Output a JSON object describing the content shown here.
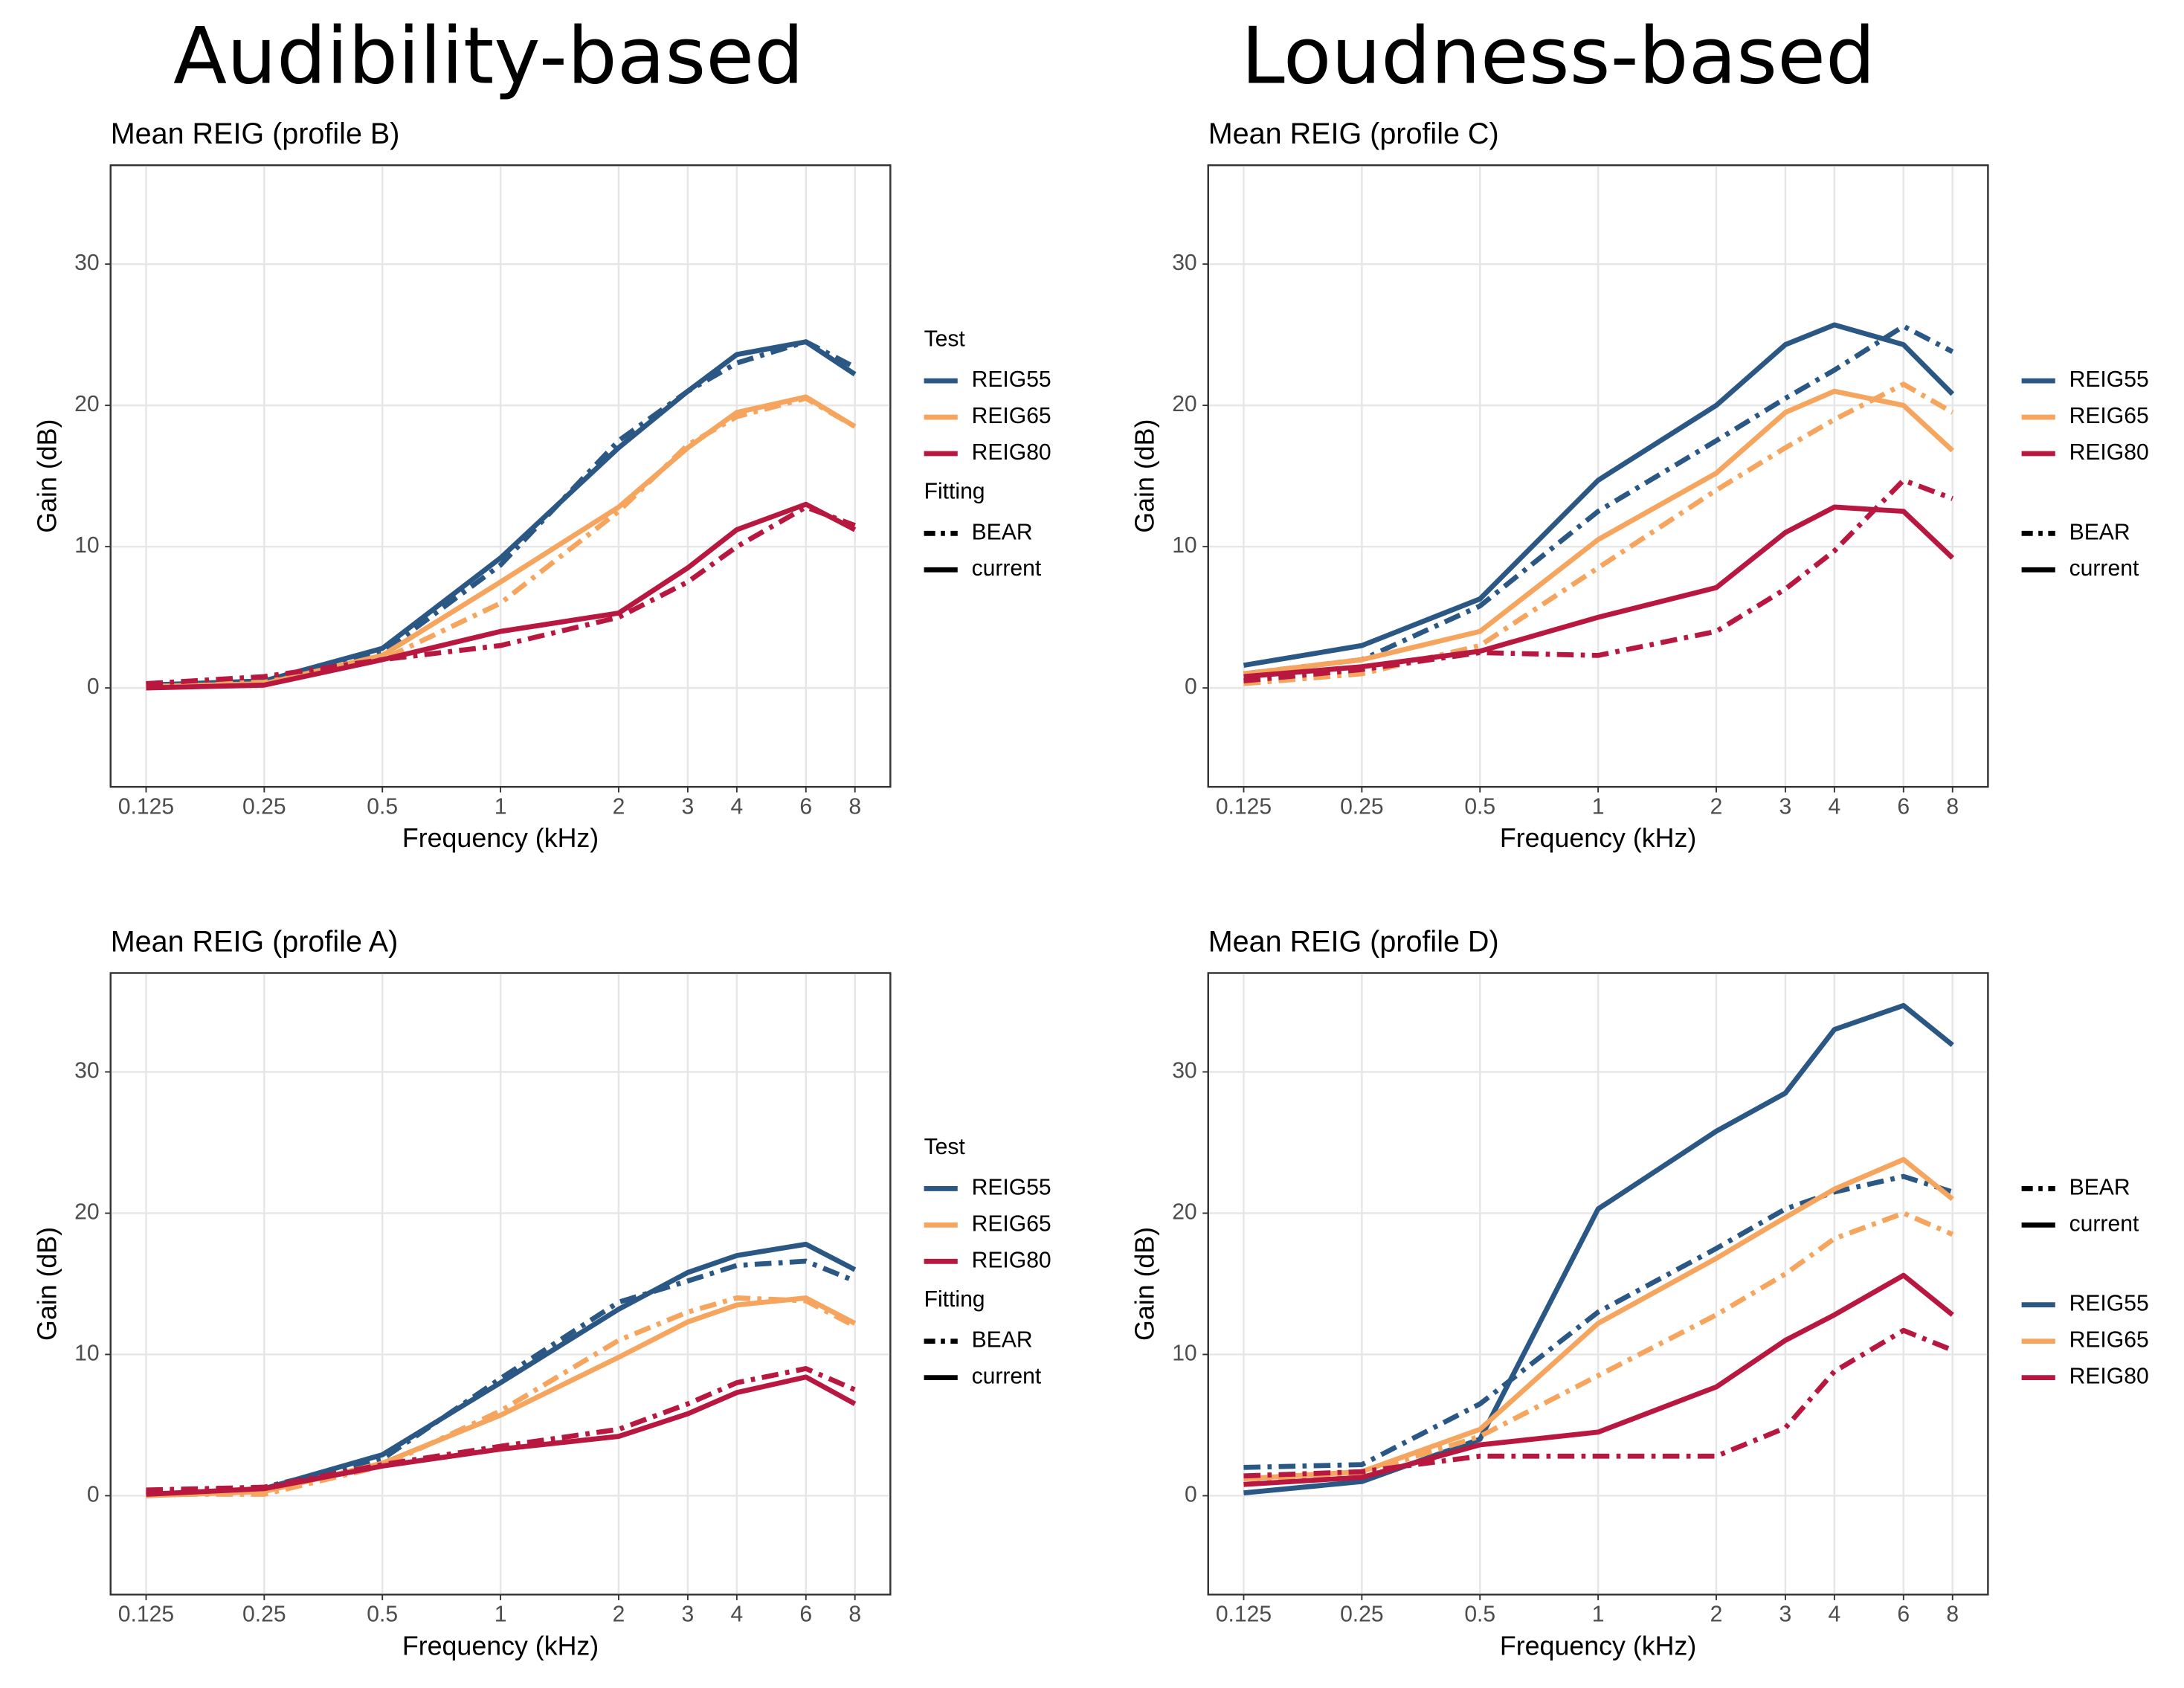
{
  "headers": [
    "Audibility-based",
    "Loudness-based"
  ],
  "chart_data": [
    {
      "type": "line",
      "title": "Mean REIG (profile B)",
      "xlabel": "Frequency (kHz)",
      "ylabel": "Gain (dB)",
      "x": [
        0.125,
        0.25,
        0.5,
        1,
        2,
        3,
        4,
        6,
        8
      ],
      "xscale": "log",
      "xlim": [
        0.1015,
        9.85
      ],
      "xticks": [
        0.125,
        0.25,
        0.5,
        1,
        2,
        3,
        4,
        6,
        8
      ],
      "ylim": [
        -7,
        37
      ],
      "yticks": [
        0,
        10,
        20,
        30
      ],
      "grid": true,
      "legend_position": "right",
      "legend_order": [
        "test",
        "fitting"
      ],
      "test_legend_title": "Test",
      "fitting_legend_title": "Fitting",
      "fittings": [
        {
          "name": "BEAR",
          "linestyle": "dashdot"
        },
        {
          "name": "current",
          "linestyle": "solid"
        }
      ],
      "series": [
        {
          "name": "REIG55",
          "color": "#2b5784",
          "values": [
            [
              0.3,
              0.6,
              2.5,
              8.7,
              17.5,
              21,
              23,
              24.5,
              22.7
            ],
            [
              0.2,
              0.5,
              2.8,
              9.2,
              17,
              21,
              23.6,
              24.5,
              22.2
            ]
          ]
        },
        {
          "name": "REIG65",
          "color": "#f5a55e",
          "values": [
            [
              0.2,
              0.4,
              2,
              6,
              12.5,
              17.2,
              19.2,
              20.5,
              18.5
            ],
            [
              0.1,
              0.3,
              2.3,
              7.5,
              12.8,
              17,
              19.5,
              20.6,
              18.5
            ]
          ]
        },
        {
          "name": "REIG80",
          "color": "#b8173f",
          "values": [
            [
              0.3,
              0.8,
              2,
              3,
              5,
              7.5,
              10,
              12.8,
              11.5
            ],
            [
              0,
              0.2,
              2,
              4,
              5.3,
              8.5,
              11.2,
              13,
              11.2
            ]
          ]
        }
      ]
    },
    {
      "type": "line",
      "title": "Mean REIG (profile C)",
      "xlabel": "Frequency (kHz)",
      "ylabel": "Gain (dB)",
      "x": [
        0.125,
        0.25,
        0.5,
        1,
        2,
        3,
        4,
        6,
        8
      ],
      "xscale": "log",
      "xlim": [
        0.1015,
        9.85
      ],
      "xticks": [
        0.125,
        0.25,
        0.5,
        1,
        2,
        3,
        4,
        6,
        8
      ],
      "ylim": [
        -7,
        37
      ],
      "yticks": [
        0,
        10,
        20,
        30
      ],
      "grid": true,
      "legend_position": "right",
      "legend_order": [
        "test",
        "fitting"
      ],
      "fittings": [
        {
          "name": "BEAR",
          "linestyle": "dashdot"
        },
        {
          "name": "current",
          "linestyle": "solid"
        }
      ],
      "series": [
        {
          "name": "REIG55",
          "color": "#2b5784",
          "values": [
            [
              1,
              2,
              5.8,
              12.5,
              17.5,
              20.5,
              22.5,
              25.6,
              23.8
            ],
            [
              1.6,
              3,
              6.3,
              14.7,
              20,
              24.3,
              25.7,
              24.3,
              20.8
            ]
          ]
        },
        {
          "name": "REIG65",
          "color": "#f5a55e",
          "values": [
            [
              0.3,
              1,
              3,
              8.5,
              14,
              17,
              19,
              21.5,
              19.5
            ],
            [
              1,
              2,
              4,
              10.5,
              15.2,
              19.5,
              21,
              20,
              16.8
            ]
          ]
        },
        {
          "name": "REIG80",
          "color": "#b8173f",
          "values": [
            [
              0.5,
              1.3,
              2.5,
              2.3,
              4,
              7,
              9.7,
              14.7,
              13.4
            ],
            [
              0.8,
              1.5,
              2.6,
              5,
              7.1,
              11,
              12.8,
              12.5,
              9.2
            ]
          ]
        }
      ]
    },
    {
      "type": "line",
      "title": "Mean REIG (profile A)",
      "xlabel": "Frequency (kHz)",
      "ylabel": "Gain (dB)",
      "x": [
        0.125,
        0.25,
        0.5,
        1,
        2,
        3,
        4,
        6,
        8
      ],
      "xscale": "log",
      "xlim": [
        0.1015,
        9.85
      ],
      "xticks": [
        0.125,
        0.25,
        0.5,
        1,
        2,
        3,
        4,
        6,
        8
      ],
      "ylim": [
        -7,
        37
      ],
      "yticks": [
        0,
        10,
        20,
        30
      ],
      "grid": true,
      "legend_position": "right",
      "legend_order": [
        "test",
        "fitting"
      ],
      "test_legend_title": "Test",
      "fitting_legend_title": "Fitting",
      "fittings": [
        {
          "name": "BEAR",
          "linestyle": "dashdot"
        },
        {
          "name": "current",
          "linestyle": "solid"
        }
      ],
      "series": [
        {
          "name": "REIG55",
          "color": "#2b5784",
          "values": [
            [
              0.2,
              0.6,
              2.6,
              8.3,
              13.7,
              15.2,
              16.3,
              16.6,
              15.2
            ],
            [
              0,
              0.5,
              2.9,
              8,
              13.2,
              15.8,
              17,
              17.8,
              16
            ]
          ]
        },
        {
          "name": "REIG65",
          "color": "#f5a55e",
          "values": [
            [
              0.1,
              0.1,
              2.1,
              6,
              11,
              13,
              14,
              13.8,
              12
            ],
            [
              0,
              0.3,
              2.3,
              5.7,
              9.8,
              12.3,
              13.5,
              14,
              12.2
            ]
          ]
        },
        {
          "name": "REIG80",
          "color": "#b8173f",
          "values": [
            [
              0.4,
              0.6,
              2.2,
              3.5,
              4.7,
              6.5,
              8,
              9,
              7.5
            ],
            [
              0.1,
              0.5,
              2.1,
              3.3,
              4.2,
              5.8,
              7.3,
              8.4,
              6.5
            ]
          ]
        }
      ]
    },
    {
      "type": "line",
      "title": "Mean REIG (profile D)",
      "xlabel": "Frequency (kHz)",
      "ylabel": "Gain (dB)",
      "x": [
        0.125,
        0.25,
        0.5,
        1,
        2,
        3,
        4,
        6,
        8
      ],
      "xscale": "log",
      "xlim": [
        0.1015,
        9.85
      ],
      "xticks": [
        0.125,
        0.25,
        0.5,
        1,
        2,
        3,
        4,
        6,
        8
      ],
      "ylim": [
        -7,
        37
      ],
      "yticks": [
        0,
        10,
        20,
        30
      ],
      "grid": true,
      "legend_position": "right",
      "legend_order": [
        "fitting",
        "test"
      ],
      "fittings": [
        {
          "name": "BEAR",
          "linestyle": "dashdot"
        },
        {
          "name": "current",
          "linestyle": "solid"
        }
      ],
      "series": [
        {
          "name": "REIG55",
          "color": "#2b5784",
          "values": [
            [
              2,
              2.2,
              6.5,
              13,
              17.5,
              20.3,
              21.5,
              22.6,
              21.5
            ],
            [
              0.2,
              1,
              4,
              20.3,
              25.8,
              28.5,
              33,
              34.7,
              31.9
            ]
          ]
        },
        {
          "name": "REIG65",
          "color": "#f5a55e",
          "values": [
            [
              0.8,
              1.6,
              4.2,
              8.5,
              12.8,
              15.7,
              18.2,
              20,
              18.5
            ],
            [
              1.2,
              1.7,
              4.7,
              12.2,
              16.8,
              19.7,
              21.7,
              23.8,
              21
            ]
          ]
        },
        {
          "name": "REIG80",
          "color": "#b8173f",
          "values": [
            [
              1.4,
              1.7,
              2.8,
              2.8,
              2.8,
              4.8,
              8.8,
              11.7,
              10.3
            ],
            [
              0.8,
              1.3,
              3.6,
              4.5,
              7.7,
              11,
              12.8,
              15.6,
              12.8
            ]
          ]
        }
      ]
    }
  ]
}
